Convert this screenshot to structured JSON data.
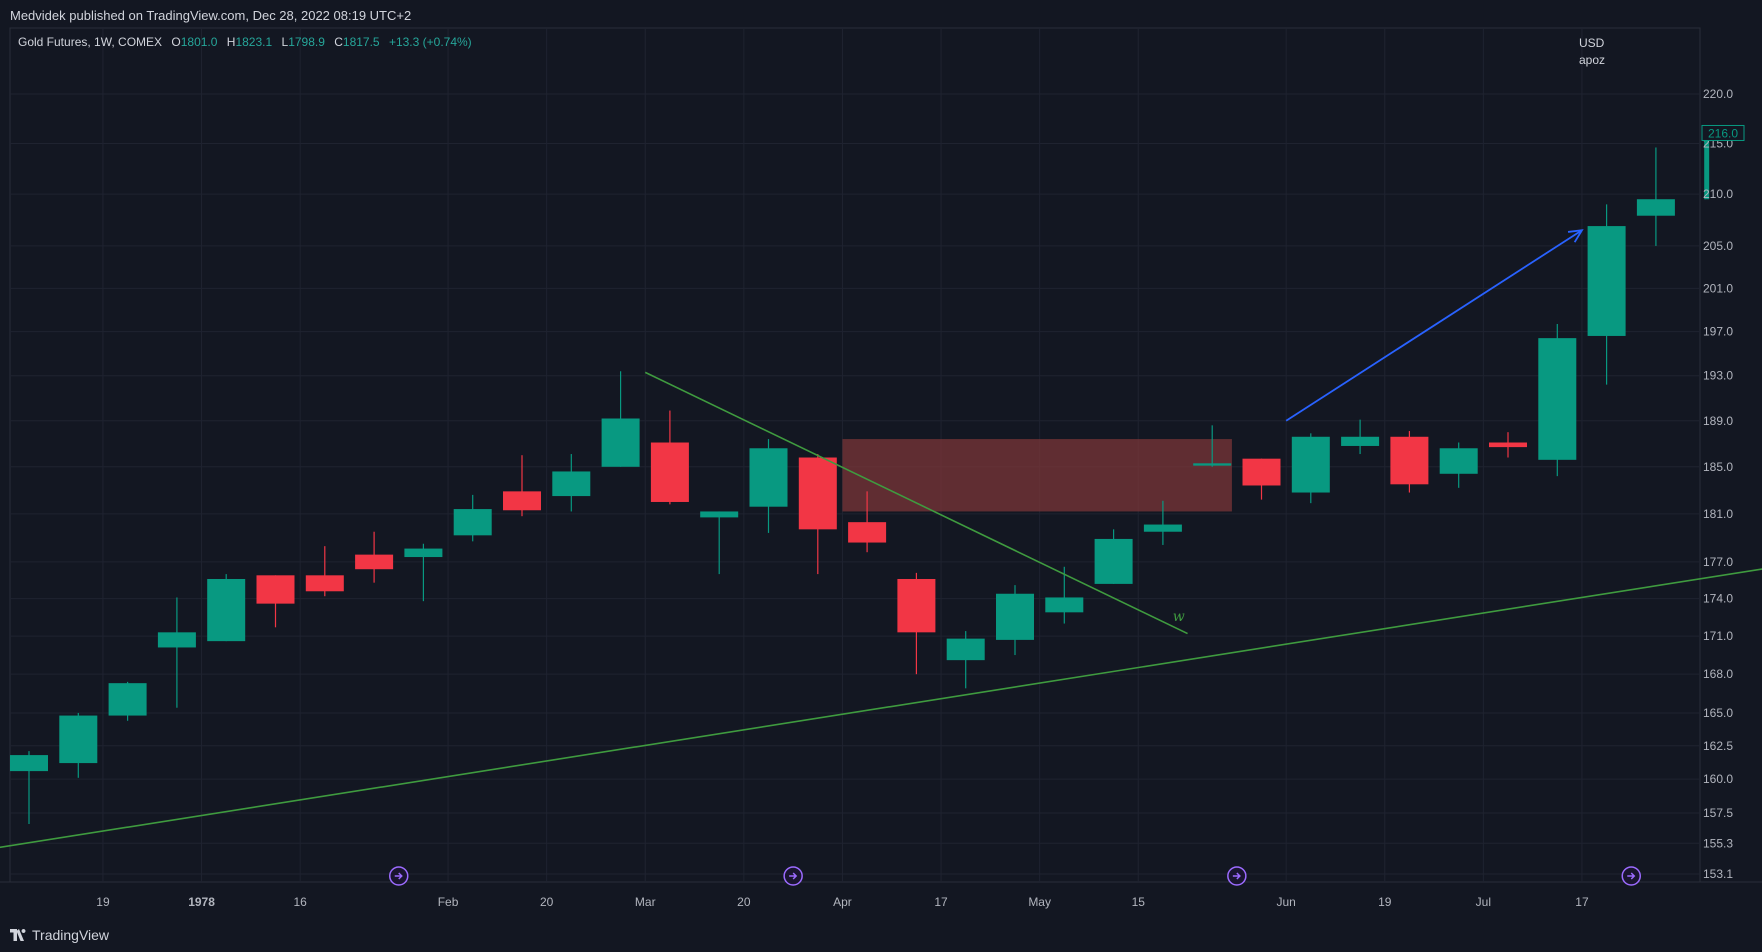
{
  "header": {
    "published_text": "Medvidek published on TradingView.com, Dec 28, 2022 08:19 UTC+2"
  },
  "legend": {
    "symbol": "Gold Futures, 1W, COMEX",
    "o_label": "O",
    "o_value": "1801.0",
    "h_label": "H",
    "h_value": "1823.1",
    "l_label": "L",
    "l_value": "1798.9",
    "c_label": "C",
    "c_value": "1817.5",
    "change": "+13.3 (+0.74%)"
  },
  "price_axis": {
    "currency": "USD",
    "note": "apoz",
    "last_price_label": "216.0"
  },
  "footer": {
    "brand": "TradingView"
  },
  "colors": {
    "up": "#089981",
    "down": "#f23645",
    "trendline": "#3f9b3f",
    "arrow": "#2962ff",
    "zone": "#7b3538",
    "event_icon": "#9c6bff"
  },
  "chart_data": {
    "type": "candlestick",
    "timeframe": "1W",
    "y_scale": "log",
    "ylim": [
      152.5,
      224
    ],
    "y_ticks": [
      220.0,
      215.0,
      210.0,
      205.0,
      201.0,
      197.0,
      193.0,
      189.0,
      185.0,
      181.0,
      177.0,
      174.0,
      171.0,
      168.0,
      165.0,
      162.5,
      160.0,
      157.5,
      155.3,
      153.1
    ],
    "x_ticks": [
      {
        "label": "19",
        "bar": 1.5,
        "bold": false
      },
      {
        "label": "1978",
        "bar": 3.5,
        "bold": true
      },
      {
        "label": "16",
        "bar": 5.5,
        "bold": false
      },
      {
        "label": "Feb",
        "bar": 8.5,
        "bold": false
      },
      {
        "label": "20",
        "bar": 10.5,
        "bold": false
      },
      {
        "label": "Mar",
        "bar": 12.5,
        "bold": false
      },
      {
        "label": "20",
        "bar": 14.5,
        "bold": false
      },
      {
        "label": "Apr",
        "bar": 16.5,
        "bold": false
      },
      {
        "label": "17",
        "bar": 18.5,
        "bold": false
      },
      {
        "label": "May",
        "bar": 20.5,
        "bold": false
      },
      {
        "label": "15",
        "bar": 22.5,
        "bold": false
      },
      {
        "label": "Jun",
        "bar": 25.5,
        "bold": false
      },
      {
        "label": "19",
        "bar": 27.5,
        "bold": false
      },
      {
        "label": "Jul",
        "bar": 29.5,
        "bold": false
      },
      {
        "label": "17",
        "bar": 31.5,
        "bold": false
      }
    ],
    "candles": [
      {
        "o": 160.6,
        "h": 162.1,
        "l": 156.7,
        "c": 161.8
      },
      {
        "o": 161.2,
        "h": 165.0,
        "l": 160.1,
        "c": 164.8
      },
      {
        "o": 164.8,
        "h": 167.4,
        "l": 164.4,
        "c": 167.3
      },
      {
        "o": 170.1,
        "h": 174.1,
        "l": 165.4,
        "c": 171.3
      },
      {
        "o": 170.6,
        "h": 176.0,
        "l": 170.6,
        "c": 175.6
      },
      {
        "o": 175.9,
        "h": 175.9,
        "l": 171.7,
        "c": 173.6
      },
      {
        "o": 175.9,
        "h": 178.3,
        "l": 174.2,
        "c": 174.6
      },
      {
        "o": 177.6,
        "h": 179.5,
        "l": 175.3,
        "c": 176.4
      },
      {
        "o": 177.4,
        "h": 178.5,
        "l": 173.8,
        "c": 178.1
      },
      {
        "o": 179.2,
        "h": 182.6,
        "l": 178.7,
        "c": 181.4
      },
      {
        "o": 182.9,
        "h": 186.0,
        "l": 180.8,
        "c": 181.3
      },
      {
        "o": 182.5,
        "h": 186.1,
        "l": 181.2,
        "c": 184.6
      },
      {
        "o": 185.0,
        "h": 193.4,
        "l": 185.0,
        "c": 189.2
      },
      {
        "o": 187.1,
        "h": 189.9,
        "l": 181.8,
        "c": 182.0
      },
      {
        "o": 180.7,
        "h": 181.2,
        "l": 176.0,
        "c": 181.2
      },
      {
        "o": 181.6,
        "h": 187.4,
        "l": 179.4,
        "c": 186.6
      },
      {
        "o": 185.8,
        "h": 186.1,
        "l": 176.0,
        "c": 179.7
      },
      {
        "o": 180.3,
        "h": 182.9,
        "l": 177.8,
        "c": 178.6
      },
      {
        "o": 175.6,
        "h": 176.1,
        "l": 168.0,
        "c": 171.3
      },
      {
        "o": 169.1,
        "h": 171.4,
        "l": 166.9,
        "c": 170.8
      },
      {
        "o": 170.7,
        "h": 175.1,
        "l": 169.5,
        "c": 174.4
      },
      {
        "o": 172.9,
        "h": 176.6,
        "l": 172.0,
        "c": 174.1
      },
      {
        "o": 175.2,
        "h": 179.7,
        "l": 175.2,
        "c": 178.9
      },
      {
        "o": 179.5,
        "h": 182.1,
        "l": 178.4,
        "c": 180.1
      },
      {
        "o": 185.1,
        "h": 188.6,
        "l": 185.0,
        "c": 185.3
      },
      {
        "o": 185.7,
        "h": 185.7,
        "l": 182.2,
        "c": 183.4
      },
      {
        "o": 182.8,
        "h": 187.9,
        "l": 181.9,
        "c": 187.6
      },
      {
        "o": 186.8,
        "h": 189.1,
        "l": 186.1,
        "c": 187.6
      },
      {
        "o": 187.6,
        "h": 188.1,
        "l": 182.8,
        "c": 183.5
      },
      {
        "o": 184.4,
        "h": 187.1,
        "l": 183.2,
        "c": 186.6
      },
      {
        "o": 187.1,
        "h": 188.0,
        "l": 185.8,
        "c": 186.7
      },
      {
        "o": 185.6,
        "h": 197.7,
        "l": 184.2,
        "c": 196.4
      },
      {
        "o": 196.6,
        "h": 209.0,
        "l": 192.2,
        "c": 206.9
      },
      {
        "o": 207.9,
        "h": 214.6,
        "l": 205.0,
        "c": 209.5
      },
      {
        "o": 209.5,
        "h": 216.3,
        "l": 209.5,
        "c": 216.0
      }
    ],
    "annotations": {
      "support_line": {
        "from": [
          -1.5,
          154.5
        ],
        "to": [
          37,
          177.6
        ]
      },
      "resistance_line": {
        "from": [
          12.5,
          193.3
        ],
        "to": [
          23.5,
          171.2
        ]
      },
      "zone": {
        "from_bar": 16.5,
        "to_bar": 24.4,
        "top": 187.4,
        "bottom": 181.2
      },
      "arrow": {
        "from": [
          25.5,
          189.0
        ],
        "to": [
          31.5,
          206.5
        ]
      },
      "text_mark": {
        "bar": 23.2,
        "price": 172.2,
        "text": "w"
      },
      "event_bars": [
        7.5,
        15.5,
        24.5,
        32.5
      ]
    }
  }
}
